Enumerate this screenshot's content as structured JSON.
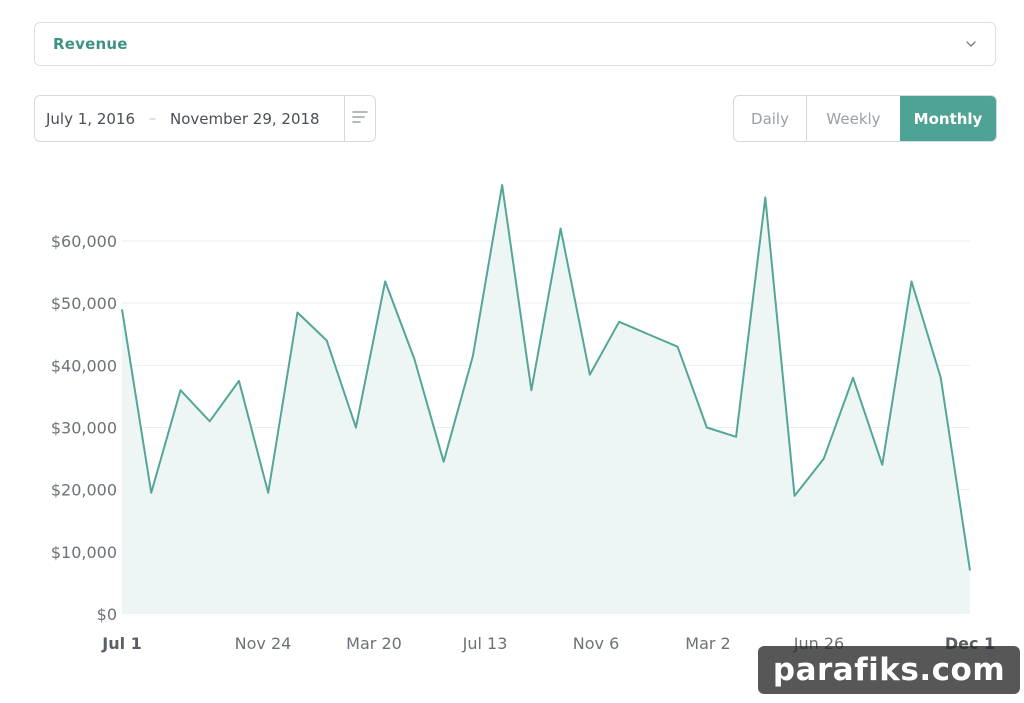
{
  "metric_select": {
    "label": "Revenue"
  },
  "date_range": {
    "start": "July 1, 2016",
    "separator": "–",
    "end": "November 29, 2018"
  },
  "period_toggle": {
    "options": [
      "Daily",
      "Weekly",
      "Monthly"
    ],
    "selected": "Monthly"
  },
  "colors": {
    "accent": "#4fa394",
    "line": "#54a697",
    "area": "#edf6f4",
    "grid": "#eceef0"
  },
  "chart_data": {
    "type": "area",
    "title": "",
    "xlabel": "",
    "ylabel": "",
    "ylim": [
      0,
      70000
    ],
    "y_ticks": [
      "$0",
      "$10,000",
      "$20,000",
      "$30,000",
      "$40,000",
      "$50,000",
      "$60,000"
    ],
    "y_tick_values": [
      0,
      10000,
      20000,
      30000,
      40000,
      50000,
      60000
    ],
    "x_tick_labels": [
      "Jul 1",
      "Nov 24",
      "Mar 20",
      "Jul 13",
      "Nov 6",
      "Mar 2",
      "Jun 26",
      "Dec 1"
    ],
    "x_tick_bold": [
      "Jul 1",
      "Dec 1"
    ],
    "grid": true,
    "series": [
      {
        "values": [
          49000,
          19500,
          36000,
          31000,
          37500,
          19500,
          48500,
          44000,
          30000,
          53500,
          41000,
          24500,
          41500,
          69000,
          36000,
          62000,
          38500,
          47000,
          45000,
          43000,
          30000,
          28500,
          67000,
          19000,
          25000,
          38000,
          24000,
          53500,
          38000,
          7000
        ]
      }
    ]
  },
  "watermark": {
    "text": "parafiks.com"
  }
}
